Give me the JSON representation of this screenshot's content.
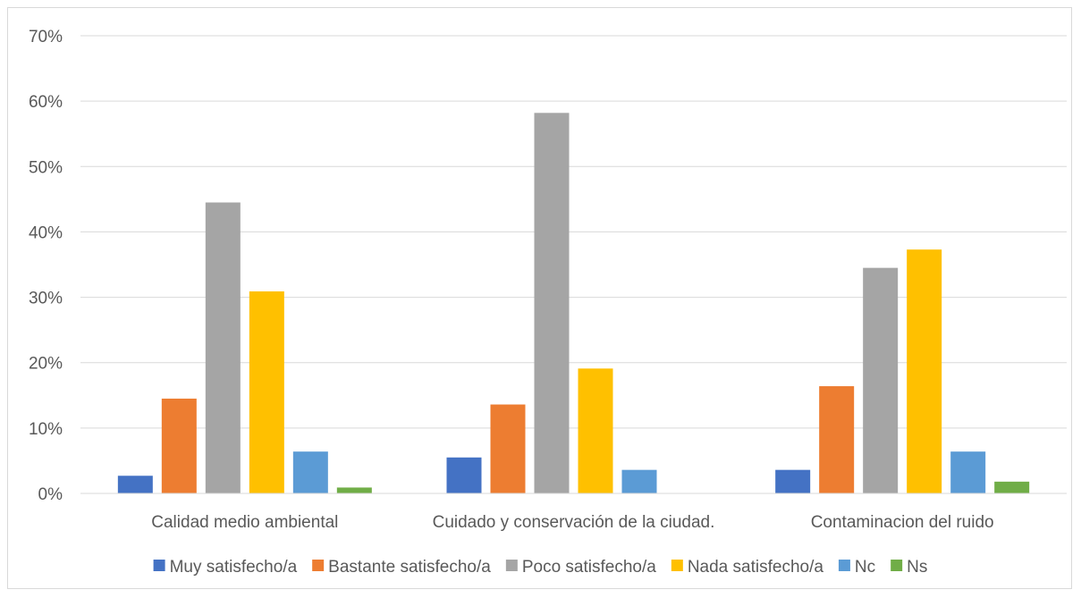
{
  "chart_data": {
    "type": "bar",
    "title": "",
    "xlabel": "",
    "ylabel": "",
    "ylim": [
      0,
      70
    ],
    "yticks": [
      "0%",
      "10%",
      "20%",
      "30%",
      "40%",
      "50%",
      "60%",
      "70%"
    ],
    "ytick_values": [
      0,
      10,
      20,
      30,
      40,
      50,
      60,
      70
    ],
    "grid": true,
    "legend_position": "bottom",
    "categories": [
      "Calidad medio ambiental",
      "Cuidado y conservación de la ciudad.",
      "Contaminacion del ruido"
    ],
    "series": [
      {
        "name": "Muy satisfecho/a",
        "color": "#4472c4",
        "values": [
          2.7,
          5.5,
          3.6
        ]
      },
      {
        "name": "Bastante satisfecho/a",
        "color": "#ed7d31",
        "values": [
          14.5,
          13.6,
          16.4
        ]
      },
      {
        "name": "Poco satisfecho/a",
        "color": "#a5a5a5",
        "values": [
          44.5,
          58.2,
          34.5
        ]
      },
      {
        "name": "Nada satisfecho/a",
        "color": "#ffc000",
        "values": [
          30.9,
          19.1,
          37.3
        ]
      },
      {
        "name": "Nc",
        "color": "#5b9bd5",
        "values": [
          6.4,
          3.6,
          6.4
        ]
      },
      {
        "name": "Ns",
        "color": "#70ad47",
        "values": [
          0.9,
          0,
          1.8
        ]
      }
    ]
  }
}
